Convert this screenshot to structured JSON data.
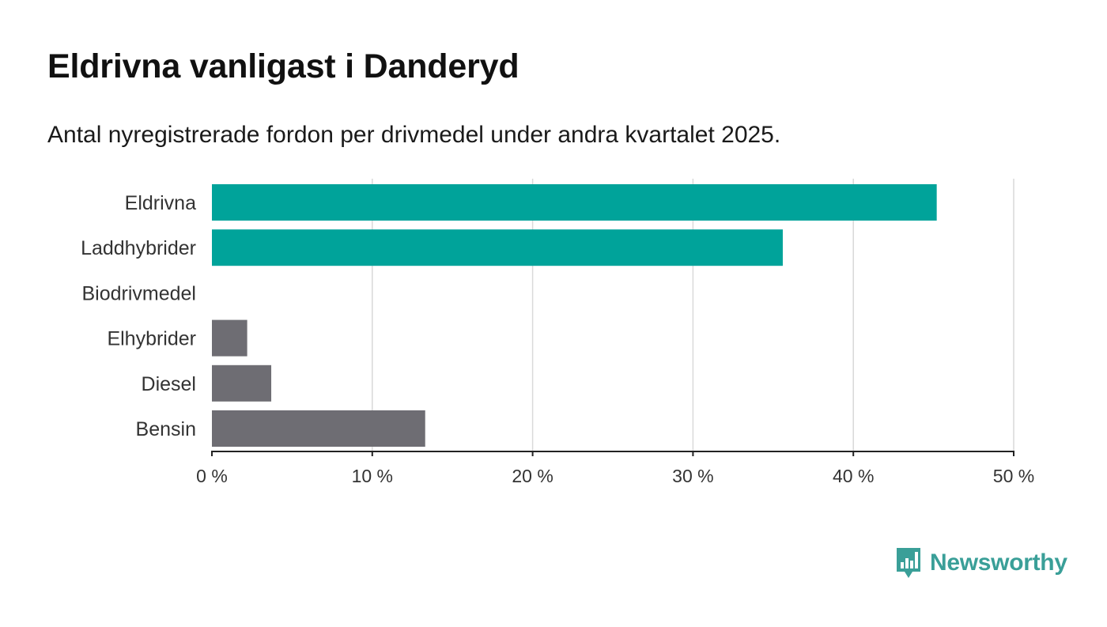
{
  "title": "Eldrivna vanligast i Danderyd",
  "subtitle": "Antal nyregistrerade fordon per drivmedel under andra kvartalet 2025.",
  "brand": {
    "name": "Newsworthy",
    "icon": "newsworthy-logo-icon"
  },
  "colors": {
    "highlight": "#00a39a",
    "muted": "#6e6d73",
    "grid": "#d9d9d9",
    "axis": "#222222",
    "brand": "#3a9f98"
  },
  "chart_data": {
    "type": "bar",
    "orientation": "horizontal",
    "categories": [
      "Eldrivna",
      "Laddhybrider",
      "Biodrivmedel",
      "Elhybrider",
      "Diesel",
      "Bensin"
    ],
    "values": [
      45.2,
      35.6,
      0,
      2.2,
      3.7,
      13.3
    ],
    "highlight": [
      true,
      true,
      false,
      false,
      false,
      false
    ],
    "unit": "%",
    "xlim": [
      0,
      50
    ],
    "xticks": [
      0,
      10,
      20,
      30,
      40,
      50
    ],
    "xtick_labels": [
      "0 %",
      "10 %",
      "20 %",
      "30 %",
      "40 %",
      "50 %"
    ],
    "grid": true,
    "legend": "none"
  }
}
